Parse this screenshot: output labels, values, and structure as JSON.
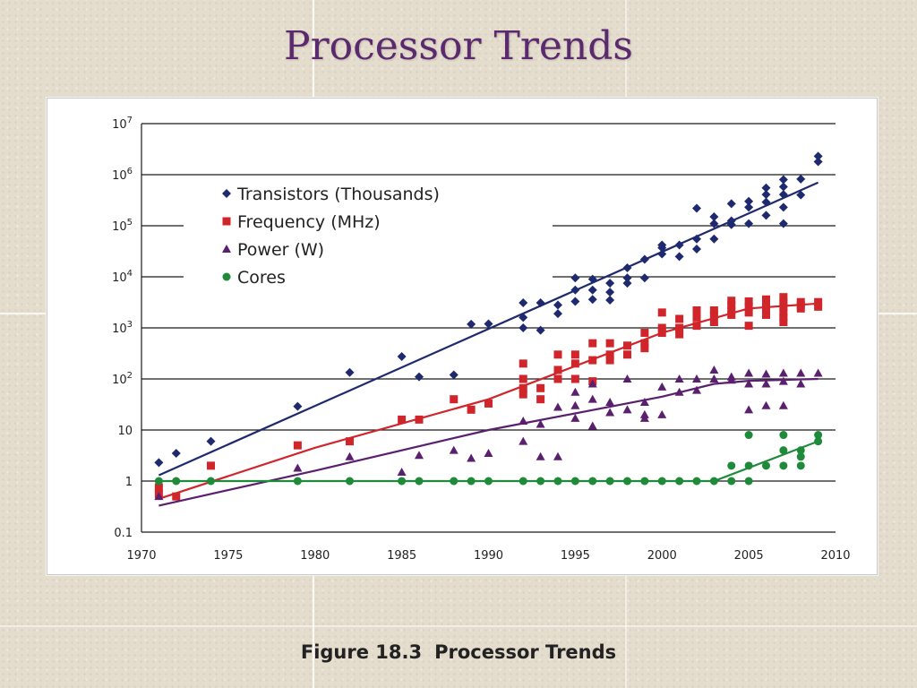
{
  "slide": {
    "title": "Processor Trends",
    "caption_label": "Figure 18.3",
    "caption_text": "Processor Trends"
  },
  "chart_data": {
    "type": "scatter",
    "title": "",
    "xlabel": "",
    "ylabel": "",
    "xlim": [
      1970,
      2010
    ],
    "ylim": [
      0.1,
      10000000
    ],
    "y_scale": "log",
    "grid": "horizontal",
    "legend_position": "top-left",
    "x_ticks": [
      "1970",
      "1975",
      "1980",
      "1985",
      "1990",
      "1995",
      "2000",
      "2005",
      "2010"
    ],
    "y_ticks": [
      {
        "base": "0.1",
        "exp": ""
      },
      {
        "base": "1",
        "exp": ""
      },
      {
        "base": "10",
        "exp": ""
      },
      {
        "base": "10",
        "exp": "2"
      },
      {
        "base": "10",
        "exp": "3"
      },
      {
        "base": "10",
        "exp": "4"
      },
      {
        "base": "10",
        "exp": "5"
      },
      {
        "base": "10",
        "exp": "6"
      },
      {
        "base": "10",
        "exp": "7"
      }
    ],
    "series": [
      {
        "name": "Transistors (Thousands)",
        "marker": "diamond",
        "color": "#1f2a6e",
        "points": [
          [
            1971,
            2.3
          ],
          [
            1972,
            3.5
          ],
          [
            1974,
            6
          ],
          [
            1979,
            29
          ],
          [
            1982,
            134
          ],
          [
            1985,
            275
          ],
          [
            1986,
            110
          ],
          [
            1988,
            120
          ],
          [
            1989,
            1180
          ],
          [
            1990,
            1200
          ],
          [
            1992,
            3100
          ],
          [
            1992,
            1600
          ],
          [
            1992,
            1000
          ],
          [
            1993,
            3100
          ],
          [
            1993,
            900
          ],
          [
            1994,
            2800
          ],
          [
            1994,
            1900
          ],
          [
            1995,
            9500
          ],
          [
            1995,
            5500
          ],
          [
            1995,
            3300
          ],
          [
            1996,
            9000
          ],
          [
            1996,
            5500
          ],
          [
            1996,
            3600
          ],
          [
            1997,
            7500
          ],
          [
            1997,
            5000
          ],
          [
            1997,
            3500
          ],
          [
            1998,
            15000
          ],
          [
            1998,
            9500
          ],
          [
            1998,
            7500
          ],
          [
            1999,
            22000
          ],
          [
            1999,
            9500
          ],
          [
            2000,
            42000
          ],
          [
            2000,
            37000
          ],
          [
            2000,
            28000
          ],
          [
            2001,
            42000
          ],
          [
            2001,
            25000
          ],
          [
            2002,
            220000
          ],
          [
            2002,
            55000
          ],
          [
            2002,
            35000
          ],
          [
            2003,
            150000
          ],
          [
            2003,
            110000
          ],
          [
            2003,
            55000
          ],
          [
            2004,
            270000
          ],
          [
            2004,
            125000
          ],
          [
            2004,
            105000
          ],
          [
            2005,
            300000
          ],
          [
            2005,
            230000
          ],
          [
            2005,
            110000
          ],
          [
            2006,
            550000
          ],
          [
            2006,
            410000
          ],
          [
            2006,
            290000
          ],
          [
            2006,
            160000
          ],
          [
            2007,
            800000
          ],
          [
            2007,
            580000
          ],
          [
            2007,
            410000
          ],
          [
            2007,
            230000
          ],
          [
            2007,
            110000
          ],
          [
            2008,
            820000
          ],
          [
            2008,
            400000
          ],
          [
            2009,
            2300000
          ],
          [
            2009,
            1800000
          ]
        ],
        "trend": [
          [
            1971,
            1.3
          ],
          [
            2009,
            700000
          ]
        ]
      },
      {
        "name": "Frequency (MHz)",
        "marker": "square",
        "color": "#d0262b",
        "points": [
          [
            1971,
            0.75
          ],
          [
            1971,
            0.55
          ],
          [
            1972,
            0.5
          ],
          [
            1974,
            2
          ],
          [
            1979,
            5
          ],
          [
            1982,
            6
          ],
          [
            1985,
            16
          ],
          [
            1986,
            16
          ],
          [
            1988,
            40
          ],
          [
            1989,
            25
          ],
          [
            1990,
            33
          ],
          [
            1992,
            200
          ],
          [
            1992,
            100
          ],
          [
            1992,
            66
          ],
          [
            1992,
            50
          ],
          [
            1993,
            66
          ],
          [
            1993,
            40
          ],
          [
            1994,
            300
          ],
          [
            1994,
            150
          ],
          [
            1994,
            100
          ],
          [
            1995,
            300
          ],
          [
            1995,
            200
          ],
          [
            1995,
            100
          ],
          [
            1996,
            500
          ],
          [
            1996,
            233
          ],
          [
            1996,
            90
          ],
          [
            1997,
            500
          ],
          [
            1997,
            300
          ],
          [
            1997,
            233
          ],
          [
            1998,
            450
          ],
          [
            1998,
            300
          ],
          [
            1999,
            800
          ],
          [
            1999,
            500
          ],
          [
            1999,
            400
          ],
          [
            2000,
            2000
          ],
          [
            2000,
            1000
          ],
          [
            2000,
            800
          ],
          [
            2001,
            1500
          ],
          [
            2001,
            1000
          ],
          [
            2001,
            750
          ],
          [
            2002,
            2200
          ],
          [
            2002,
            1600
          ],
          [
            2002,
            1100
          ],
          [
            2003,
            2200
          ],
          [
            2003,
            1800
          ],
          [
            2003,
            1300
          ],
          [
            2004,
            3400
          ],
          [
            2004,
            2800
          ],
          [
            2004,
            2200
          ],
          [
            2004,
            1800
          ],
          [
            2005,
            3300
          ],
          [
            2005,
            2600
          ],
          [
            2005,
            2000
          ],
          [
            2005,
            1100
          ],
          [
            2006,
            3600
          ],
          [
            2006,
            2900
          ],
          [
            2006,
            2400
          ],
          [
            2006,
            1800
          ],
          [
            2007,
            4000
          ],
          [
            2007,
            3200
          ],
          [
            2007,
            2600
          ],
          [
            2007,
            2000
          ],
          [
            2007,
            1600
          ],
          [
            2007,
            1300
          ],
          [
            2008,
            3200
          ],
          [
            2008,
            2800
          ],
          [
            2008,
            2400
          ],
          [
            2009,
            3200
          ],
          [
            2009,
            2600
          ]
        ],
        "trend": [
          [
            1971,
            0.45
          ],
          [
            1980,
            4.5
          ],
          [
            1990,
            40
          ],
          [
            2000,
            800
          ],
          [
            2005,
            2400
          ],
          [
            2009,
            3000
          ]
        ]
      },
      {
        "name": "Power (W)",
        "marker": "triangle",
        "color": "#5a1f6e",
        "points": [
          [
            1971,
            0.5
          ],
          [
            1979,
            1.8
          ],
          [
            1982,
            3
          ],
          [
            1985,
            1.5
          ],
          [
            1986,
            3.2
          ],
          [
            1988,
            4
          ],
          [
            1989,
            2.8
          ],
          [
            1990,
            3.5
          ],
          [
            1992,
            15
          ],
          [
            1992,
            6
          ],
          [
            1993,
            13
          ],
          [
            1993,
            3
          ],
          [
            1994,
            3
          ],
          [
            1994,
            28
          ],
          [
            1995,
            55
          ],
          [
            1995,
            30
          ],
          [
            1995,
            17
          ],
          [
            1996,
            80
          ],
          [
            1996,
            40
          ],
          [
            1996,
            12
          ],
          [
            1997,
            35
          ],
          [
            1997,
            22
          ],
          [
            1998,
            100
          ],
          [
            1998,
            25
          ],
          [
            1999,
            35
          ],
          [
            1999,
            20
          ],
          [
            1999,
            17
          ],
          [
            2000,
            70
          ],
          [
            2000,
            20
          ],
          [
            2001,
            100
          ],
          [
            2001,
            55
          ],
          [
            2002,
            100
          ],
          [
            2002,
            60
          ],
          [
            2003,
            150
          ],
          [
            2003,
            100
          ],
          [
            2004,
            110
          ],
          [
            2004,
            95
          ],
          [
            2005,
            130
          ],
          [
            2005,
            80
          ],
          [
            2005,
            25
          ],
          [
            2006,
            125
          ],
          [
            2006,
            80
          ],
          [
            2006,
            30
          ],
          [
            2007,
            130
          ],
          [
            2007,
            90
          ],
          [
            2007,
            30
          ],
          [
            2008,
            130
          ],
          [
            2008,
            80
          ],
          [
            2009,
            130
          ]
        ],
        "trend": [
          [
            1971,
            0.33
          ],
          [
            1980,
            1.6
          ],
          [
            1990,
            10
          ],
          [
            2000,
            45
          ],
          [
            2003,
            80
          ],
          [
            2005,
            92
          ],
          [
            2009,
            100
          ]
        ]
      },
      {
        "name": "Cores",
        "marker": "circle",
        "color": "#1f8a3a",
        "points": [
          [
            1971,
            1
          ],
          [
            1972,
            1
          ],
          [
            1974,
            1
          ],
          [
            1979,
            1
          ],
          [
            1982,
            1
          ],
          [
            1985,
            1
          ],
          [
            1986,
            1
          ],
          [
            1988,
            1
          ],
          [
            1989,
            1
          ],
          [
            1990,
            1
          ],
          [
            1992,
            1
          ],
          [
            1993,
            1
          ],
          [
            1994,
            1
          ],
          [
            1995,
            1
          ],
          [
            1996,
            1
          ],
          [
            1997,
            1
          ],
          [
            1998,
            1
          ],
          [
            1999,
            1
          ],
          [
            2000,
            1
          ],
          [
            2001,
            1
          ],
          [
            2002,
            1
          ],
          [
            2003,
            1
          ],
          [
            2004,
            1
          ],
          [
            2004,
            2
          ],
          [
            2005,
            2
          ],
          [
            2005,
            1
          ],
          [
            2005,
            8
          ],
          [
            2006,
            2
          ],
          [
            2007,
            2
          ],
          [
            2007,
            4
          ],
          [
            2007,
            8
          ],
          [
            2008,
            2
          ],
          [
            2008,
            4
          ],
          [
            2008,
            3
          ],
          [
            2009,
            8
          ],
          [
            2009,
            6
          ]
        ],
        "trend": [
          [
            1971,
            1
          ],
          [
            2003,
            1
          ],
          [
            2009,
            6
          ]
        ]
      }
    ]
  }
}
